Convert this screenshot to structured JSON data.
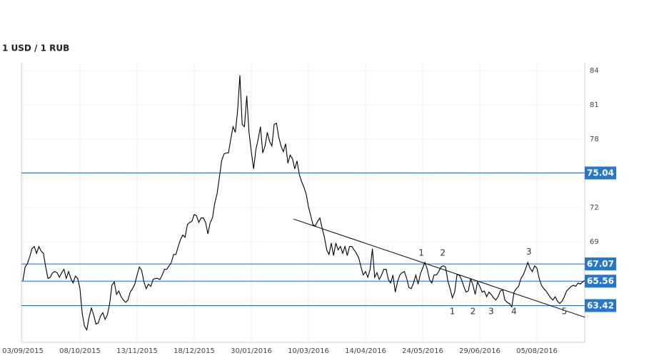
{
  "chart_data": {
    "type": "line",
    "title": "1 USD / 1 RUB",
    "values": [
      65.6,
      66.8,
      67.1,
      67.7,
      68.4,
      68.6,
      68.0,
      68.6,
      68.2,
      68.0,
      66.8,
      65.8,
      65.9,
      66.3,
      66.4,
      66.3,
      65.9,
      66.3,
      66.6,
      65.8,
      66.4,
      65.8,
      65.4,
      66.0,
      65.8,
      64.9,
      62.7,
      61.6,
      61.3,
      62.4,
      63.2,
      62.6,
      61.8,
      61.9,
      62.5,
      62.8,
      62.2,
      62.6,
      63.6,
      65.2,
      65.5,
      64.4,
      64.7,
      64.2,
      63.9,
      63.7,
      63.9,
      64.6,
      64.9,
      65.3,
      66.1,
      66.8,
      66.5,
      65.5,
      64.9,
      65.3,
      65.1,
      65.7,
      65.8,
      65.8,
      65.7,
      66.1,
      66.6,
      66.6,
      66.9,
      67.2,
      67.9,
      67.9,
      68.6,
      69.2,
      69.6,
      69.4,
      70.5,
      70.7,
      70.8,
      71.4,
      71.3,
      70.7,
      71.1,
      71.1,
      70.7,
      69.7,
      70.7,
      71.1,
      72.4,
      73.2,
      74.6,
      76.1,
      76.7,
      76.8,
      76.8,
      78.0,
      79.1,
      78.6,
      80.5,
      83.6,
      79.3,
      79.1,
      81.8,
      78.6,
      76.9,
      75.4,
      77.1,
      78.0,
      79.1,
      76.8,
      77.4,
      78.6,
      77.8,
      77.4,
      79.3,
      79.4,
      78.2,
      77.4,
      76.9,
      77.6,
      75.9,
      76.6,
      76.3,
      75.4,
      76.1,
      74.9,
      74.3,
      73.8,
      73.2,
      72.1,
      71.3,
      70.5,
      70.4,
      70.8,
      71.1,
      70.2,
      69.4,
      68.3,
      67.9,
      68.9,
      67.8,
      68.9,
      68.3,
      68.6,
      68.0,
      68.6,
      67.8,
      68.6,
      68.6,
      68.3,
      68.0,
      67.6,
      66.8,
      66.1,
      66.4,
      65.9,
      66.6,
      68.4,
      65.9,
      66.3,
      65.7,
      66.1,
      66.6,
      66.6,
      65.7,
      65.4,
      66.1,
      64.6,
      65.5,
      66.1,
      66.3,
      66.4,
      65.8,
      65.0,
      64.9,
      65.4,
      66.1,
      65.3,
      66.2,
      66.7,
      67.2,
      66.6,
      65.7,
      65.4,
      66.1,
      66.1,
      66.4,
      66.8,
      66.9,
      66.8,
      65.6,
      64.9,
      64.1,
      64.6,
      66.1,
      66.1,
      65.7,
      65.1,
      64.6,
      64.7,
      65.8,
      65.2,
      64.4,
      65.5,
      65.1,
      64.6,
      64.7,
      64.2,
      64.6,
      64.4,
      64.1,
      63.9,
      64.2,
      64.7,
      64.8,
      63.9,
      63.7,
      63.6,
      63.3,
      64.6,
      64.9,
      65.1,
      65.8,
      66.1,
      66.6,
      67.2,
      66.7,
      66.4,
      66.9,
      66.7,
      65.8,
      65.2,
      64.9,
      64.7,
      64.4,
      64.1,
      63.9,
      64.2,
      63.8,
      63.6,
      63.8,
      64.2,
      64.7,
      64.9,
      65.1,
      65.2,
      65.1,
      65.4,
      65.3,
      65.5,
      65.6
    ],
    "color": "#000000",
    "xlim": [
      0,
      246
    ],
    "xticks": [
      {
        "value": 0,
        "label": "03/09/2015"
      },
      {
        "value": 25,
        "label": "08/10/2015"
      },
      {
        "value": 50,
        "label": "13/11/2015"
      },
      {
        "value": 75,
        "label": "18/12/2015"
      },
      {
        "value": 100,
        "label": "30/01/2016"
      },
      {
        "value": 125,
        "label": "10/03/2016"
      },
      {
        "value": 150,
        "label": "14/04/2016"
      },
      {
        "value": 175,
        "label": "24/05/2016"
      },
      {
        "value": 200,
        "label": "29/06/2016"
      },
      {
        "value": 225,
        "label": "05/08/2016"
      }
    ],
    "ylim": [
      60.2,
      84.7
    ],
    "yticks": [
      69,
      72,
      78,
      81,
      84
    ],
    "grid": true,
    "levels": {
      "values": [
        75.04,
        67.07,
        65.56,
        63.42
      ],
      "color": "#1f6fbf",
      "label_color": "#2677c9"
    },
    "trendline": {
      "x": [
        118.5,
        246
      ],
      "values": [
        71.0,
        62.4
      ],
      "color": "#000000"
    },
    "annotations": [
      {
        "text": "1",
        "x": 174.4,
        "y": 68.0
      },
      {
        "text": "2",
        "x": 183.8,
        "y": 68.0
      },
      {
        "text": "1",
        "x": 188,
        "y": 62.9
      },
      {
        "text": "2",
        "x": 197,
        "y": 62.9
      },
      {
        "text": "3",
        "x": 205,
        "y": 62.9
      },
      {
        "text": "4",
        "x": 215,
        "y": 62.9
      },
      {
        "text": "5",
        "x": 237,
        "y": 62.9
      },
      {
        "text": "3",
        "x": 221.5,
        "y": 68.1
      }
    ]
  }
}
